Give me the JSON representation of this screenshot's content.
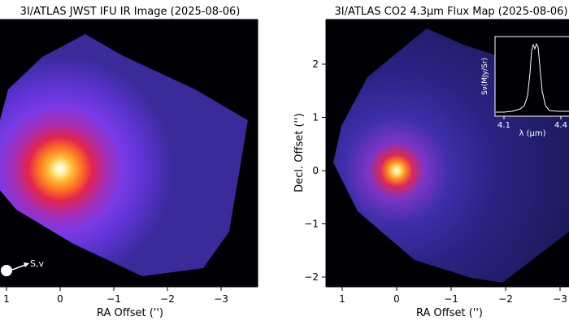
{
  "chart_data": [
    {
      "type": "heatmap",
      "title": "3I/ATLAS JWST IFU IR Image (2025-08-06)",
      "xlabel": "RA Offset ('')",
      "ylabel": "",
      "xticks": [
        1,
        0,
        -1,
        -2,
        -3
      ],
      "xtick_labels": [
        "1",
        "0",
        "−1",
        "−2",
        "−3"
      ],
      "xlim": [
        1.0,
        -3.6
      ],
      "ylim": [
        -2.25,
        2.75
      ],
      "peak": {
        "ra": 0.0,
        "dec": 0.0
      },
      "direction_label": "S,v"
    },
    {
      "type": "heatmap",
      "title": "3I/ATLAS CO2 4.3μm Flux Map (2025-08-06)",
      "xlabel": "RA Offset ('')",
      "ylabel": "Decl. Offset ('')",
      "xticks": [
        1,
        0,
        -1,
        -2,
        -3
      ],
      "xtick_labels": [
        "1",
        "0",
        "−1",
        "−2",
        "−3"
      ],
      "yticks": [
        2,
        1,
        0,
        -1,
        -2
      ],
      "ytick_labels": [
        "2",
        "1",
        "0",
        "−1",
        "−2"
      ],
      "xlim": [
        1.5,
        -3.2
      ],
      "ylim": [
        -2.2,
        2.8
      ],
      "peak": {
        "ra": 0.0,
        "dec": 0.0
      },
      "inset": {
        "type": "line",
        "xlabel": "λ (μm)",
        "ylabel": "Sν(MJy/Sr)",
        "xtick_labels": [
          "4.1",
          "4.4"
        ],
        "xticks": [
          4.1,
          4.4
        ],
        "xlim": [
          4.05,
          4.45
        ]
      }
    }
  ]
}
